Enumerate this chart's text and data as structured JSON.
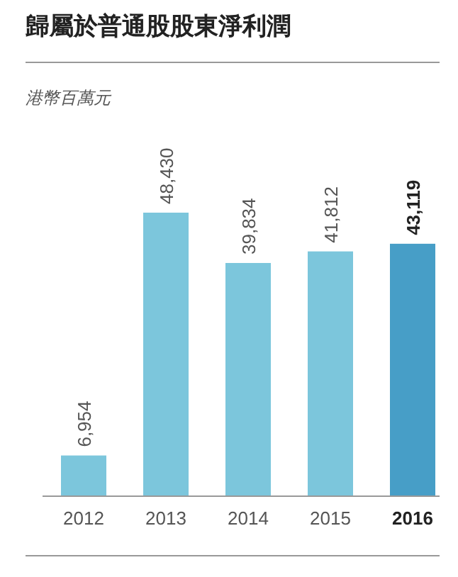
{
  "chart_data": {
    "type": "bar",
    "title": "歸屬於普通股股東淨利潤",
    "subtitle": "港幣百萬元",
    "categories": [
      "2012",
      "2013",
      "2014",
      "2015",
      "2016"
    ],
    "values": [
      6954,
      48430,
      39834,
      41812,
      43119
    ],
    "colors": [
      "#7cc6dc",
      "#7cc6dc",
      "#7cc6dc",
      "#7cc6dc",
      "#479ec7"
    ],
    "value_labels": [
      "6,954",
      "48,430",
      "39,834",
      "41,812",
      "43,119"
    ]
  }
}
